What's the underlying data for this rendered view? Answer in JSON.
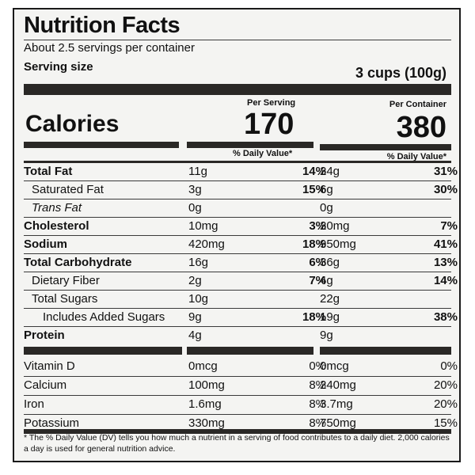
{
  "title": "Nutrition Facts",
  "servings_per_container": "About 2.5 servings per container",
  "serving_size_label": "Serving size",
  "serving_size_value": "3 cups (100g)",
  "per_serving_label": "Per Serving",
  "per_container_label": "Per Container",
  "calories_label": "Calories",
  "calories_per_serving": "170",
  "calories_per_container": "380",
  "daily_value_label": "% Daily Value*",
  "nutrients": [
    {
      "name": "Total Fat",
      "amt1": "11g",
      "pct1": "14%",
      "amt2": "24g",
      "pct2": "31%"
    },
    {
      "name": "Saturated Fat",
      "amt1": "3g",
      "pct1": "15%",
      "amt2": "6g",
      "pct2": "30%"
    },
    {
      "name": "Trans Fat",
      "amt1": "0g",
      "pct1": "",
      "amt2": "0g",
      "pct2": ""
    },
    {
      "name": "Cholesterol",
      "amt1": "10mg",
      "pct1": "3%",
      "amt2": "20mg",
      "pct2": "7%"
    },
    {
      "name": "Sodium",
      "amt1": "420mg",
      "pct1": "18%",
      "amt2": "950mg",
      "pct2": "41%"
    },
    {
      "name": "Total Carbohydrate",
      "amt1": "16g",
      "pct1": "6%",
      "amt2": "36g",
      "pct2": "13%"
    },
    {
      "name": "Dietary Fiber",
      "amt1": "2g",
      "pct1": "7%",
      "amt2": "4g",
      "pct2": "14%"
    },
    {
      "name": "Total Sugars",
      "amt1": "10g",
      "pct1": "",
      "amt2": "22g",
      "pct2": ""
    },
    {
      "name": "Includes Added Sugars",
      "amt1": "9g",
      "pct1": "18%",
      "amt2": "19g",
      "pct2": "38%"
    },
    {
      "name": "Protein",
      "amt1": "4g",
      "pct1": "",
      "amt2": "9g",
      "pct2": ""
    }
  ],
  "vitamins": [
    {
      "name": "Vitamin D",
      "amt1": "0mcg",
      "pct1": "0%",
      "amt2": "0mcg",
      "pct2": "0%"
    },
    {
      "name": "Calcium",
      "amt1": "100mg",
      "pct1": "8%",
      "amt2": "240mg",
      "pct2": "20%"
    },
    {
      "name": "Iron",
      "amt1": "1.6mg",
      "pct1": "8%",
      "amt2": "3.7mg",
      "pct2": "20%"
    },
    {
      "name": "Potassium",
      "amt1": "330mg",
      "pct1": "8%",
      "amt2": "750mg",
      "pct2": "15%"
    }
  ],
  "footnote": "* The % Daily Value (DV) tells you how much a nutrient in a serving of food contributes to a daily diet. 2,000 calories a day is used for general nutrition advice."
}
